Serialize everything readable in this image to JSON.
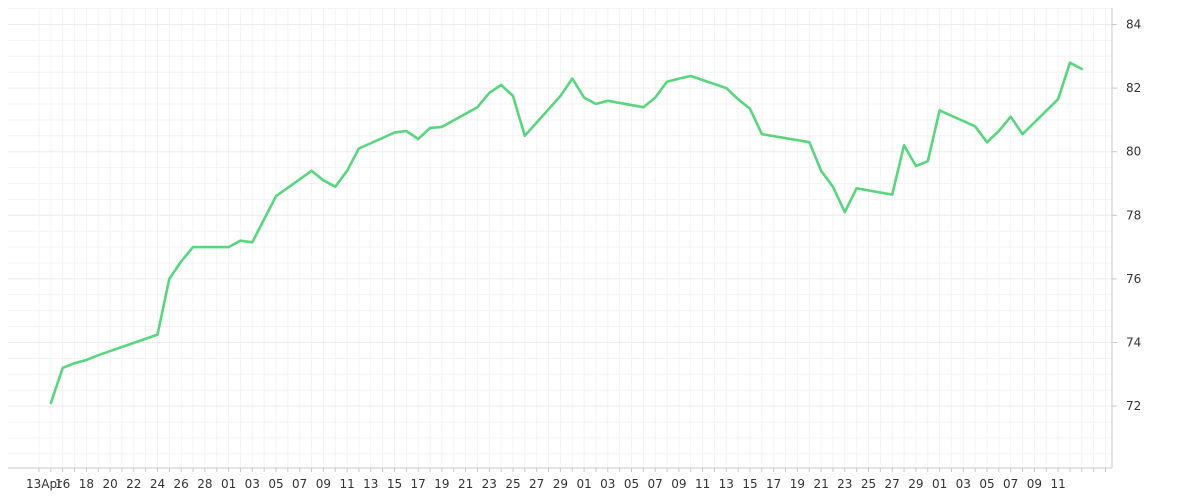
{
  "chart_data": {
    "type": "line",
    "title": "",
    "xlabel": "",
    "ylabel": "",
    "ylim": [
      70.2,
      84.6
    ],
    "y_ticks": [
      72,
      74,
      76,
      78,
      80,
      82,
      84
    ],
    "x_tick_labels": [
      "13Apr",
      "16",
      "18",
      "20",
      "22",
      "24",
      "26",
      "28",
      "01",
      "03",
      "05",
      "07",
      "09",
      "11",
      "13",
      "15",
      "17",
      "19",
      "21",
      "23",
      "25",
      "27",
      "29",
      "01",
      "03",
      "05",
      "07",
      "09",
      "11",
      "13",
      "15",
      "17",
      "19",
      "21",
      "23",
      "25",
      "27",
      "29",
      "01",
      "03",
      "05",
      "07",
      "09",
      "11"
    ],
    "grid": true,
    "line_color": "#5ad67f",
    "series": [
      {
        "x": [
          "Apr 14",
          "Apr 15",
          "Apr 16",
          "Apr 17",
          "Apr 18",
          "Apr 23",
          "Apr 24",
          "Apr 25",
          "Apr 26",
          "Apr 29",
          "Apr 30",
          "May 1",
          "May 3",
          "May 6",
          "May 7",
          "May 8",
          "May 9",
          "May 10",
          "May 13",
          "May 14",
          "May 15",
          "May 16",
          "May 17",
          "May 20",
          "May 21",
          "May 22",
          "May 23",
          "May 24",
          "May 27",
          "May 28",
          "May 29",
          "May 30",
          "May 31",
          "Jun 3",
          "Jun 4",
          "Jun 5",
          "Jun 6",
          "Jun 7",
          "Jun 10",
          "Jun 11",
          "Jun 12",
          "Jun 13",
          "Jun 17",
          "Jun 18",
          "Jun 19",
          "Jun 20",
          "Jun 21",
          "Jun 24",
          "Jun 25",
          "Jun 26",
          "Jun 27",
          "Jun 28",
          "Jul 1",
          "Jul 2",
          "Jul 3",
          "Jul 4",
          "Jul 5",
          "Jul 8",
          "Jul 9",
          "Jul 10"
        ],
        "y": [
          72.1,
          73.2,
          73.35,
          73.45,
          73.6,
          74.25,
          76.0,
          76.55,
          77.0,
          77.0,
          77.2,
          77.15,
          78.6,
          79.4,
          79.1,
          78.9,
          79.4,
          80.1,
          80.6,
          80.65,
          80.4,
          80.75,
          80.78,
          81.4,
          81.85,
          82.1,
          81.75,
          80.5,
          81.75,
          82.3,
          81.7,
          81.5,
          81.6,
          81.4,
          81.7,
          82.2,
          82.3,
          82.38,
          82.0,
          81.65,
          81.35,
          80.55,
          80.3,
          79.4,
          78.9,
          78.1,
          78.85,
          78.65,
          80.2,
          79.55,
          79.7,
          81.3,
          80.8,
          80.3,
          80.65,
          81.1,
          80.55,
          81.65,
          82.8,
          82.6
        ]
      }
    ]
  }
}
